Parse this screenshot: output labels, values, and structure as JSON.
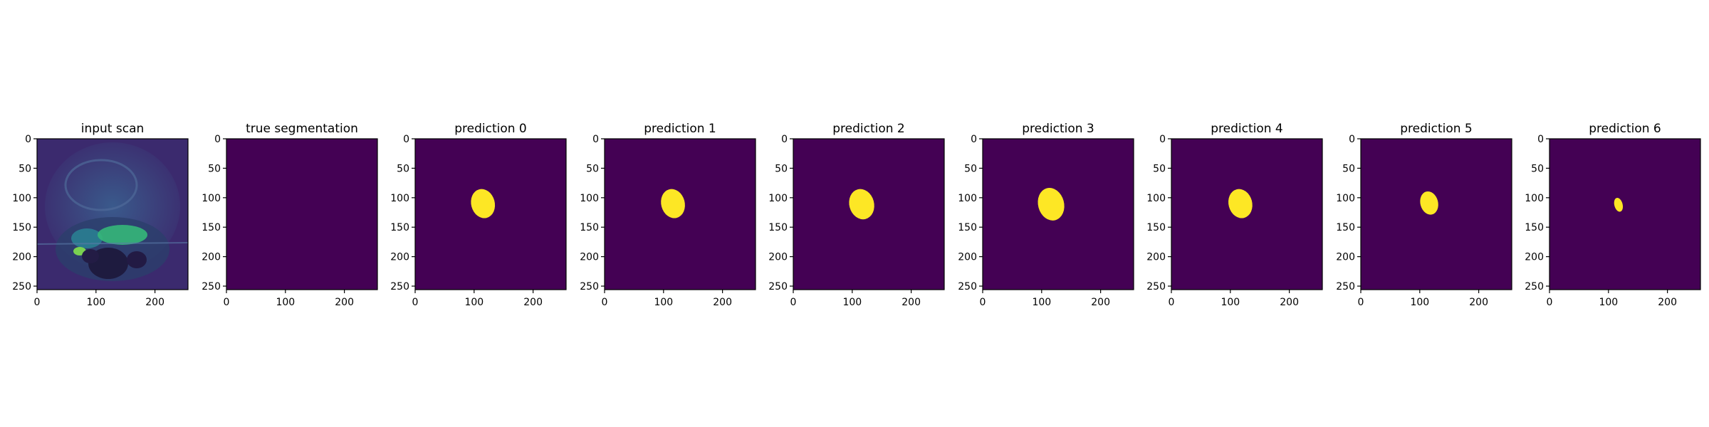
{
  "figure": {
    "panels": [
      {
        "title": "input scan",
        "kind": "scan"
      },
      {
        "title": "true segmentation",
        "kind": "mask",
        "mask": null
      },
      {
        "title": "prediction 0",
        "kind": "mask",
        "mask": {
          "cx": 115,
          "cy": 110,
          "rx": 20,
          "ry": 25
        }
      },
      {
        "title": "prediction 1",
        "kind": "mask",
        "mask": {
          "cx": 116,
          "cy": 110,
          "rx": 20,
          "ry": 25
        }
      },
      {
        "title": "prediction 2",
        "kind": "mask",
        "mask": {
          "cx": 116,
          "cy": 111,
          "rx": 21,
          "ry": 26
        }
      },
      {
        "title": "prediction 3",
        "kind": "mask",
        "mask": {
          "cx": 116,
          "cy": 111,
          "rx": 22,
          "ry": 28
        }
      },
      {
        "title": "prediction 4",
        "kind": "mask",
        "mask": {
          "cx": 117,
          "cy": 110,
          "rx": 20,
          "ry": 25
        }
      },
      {
        "title": "prediction 5",
        "kind": "mask",
        "mask": {
          "cx": 116,
          "cy": 109,
          "rx": 15,
          "ry": 20
        }
      },
      {
        "title": "prediction 6",
        "kind": "mask",
        "mask": {
          "cx": 117,
          "cy": 112,
          "rx": 7,
          "ry": 12
        }
      }
    ],
    "x_ticks": [
      "0",
      "100",
      "200"
    ],
    "y_ticks": [
      "0",
      "50",
      "100",
      "150",
      "200",
      "250"
    ],
    "colors": {
      "background": "#440154",
      "foreground": "#fde725",
      "scan_dark": "#3b2a6e",
      "scan_mid": "#2a788e",
      "scan_bright": "#35b779"
    }
  }
}
